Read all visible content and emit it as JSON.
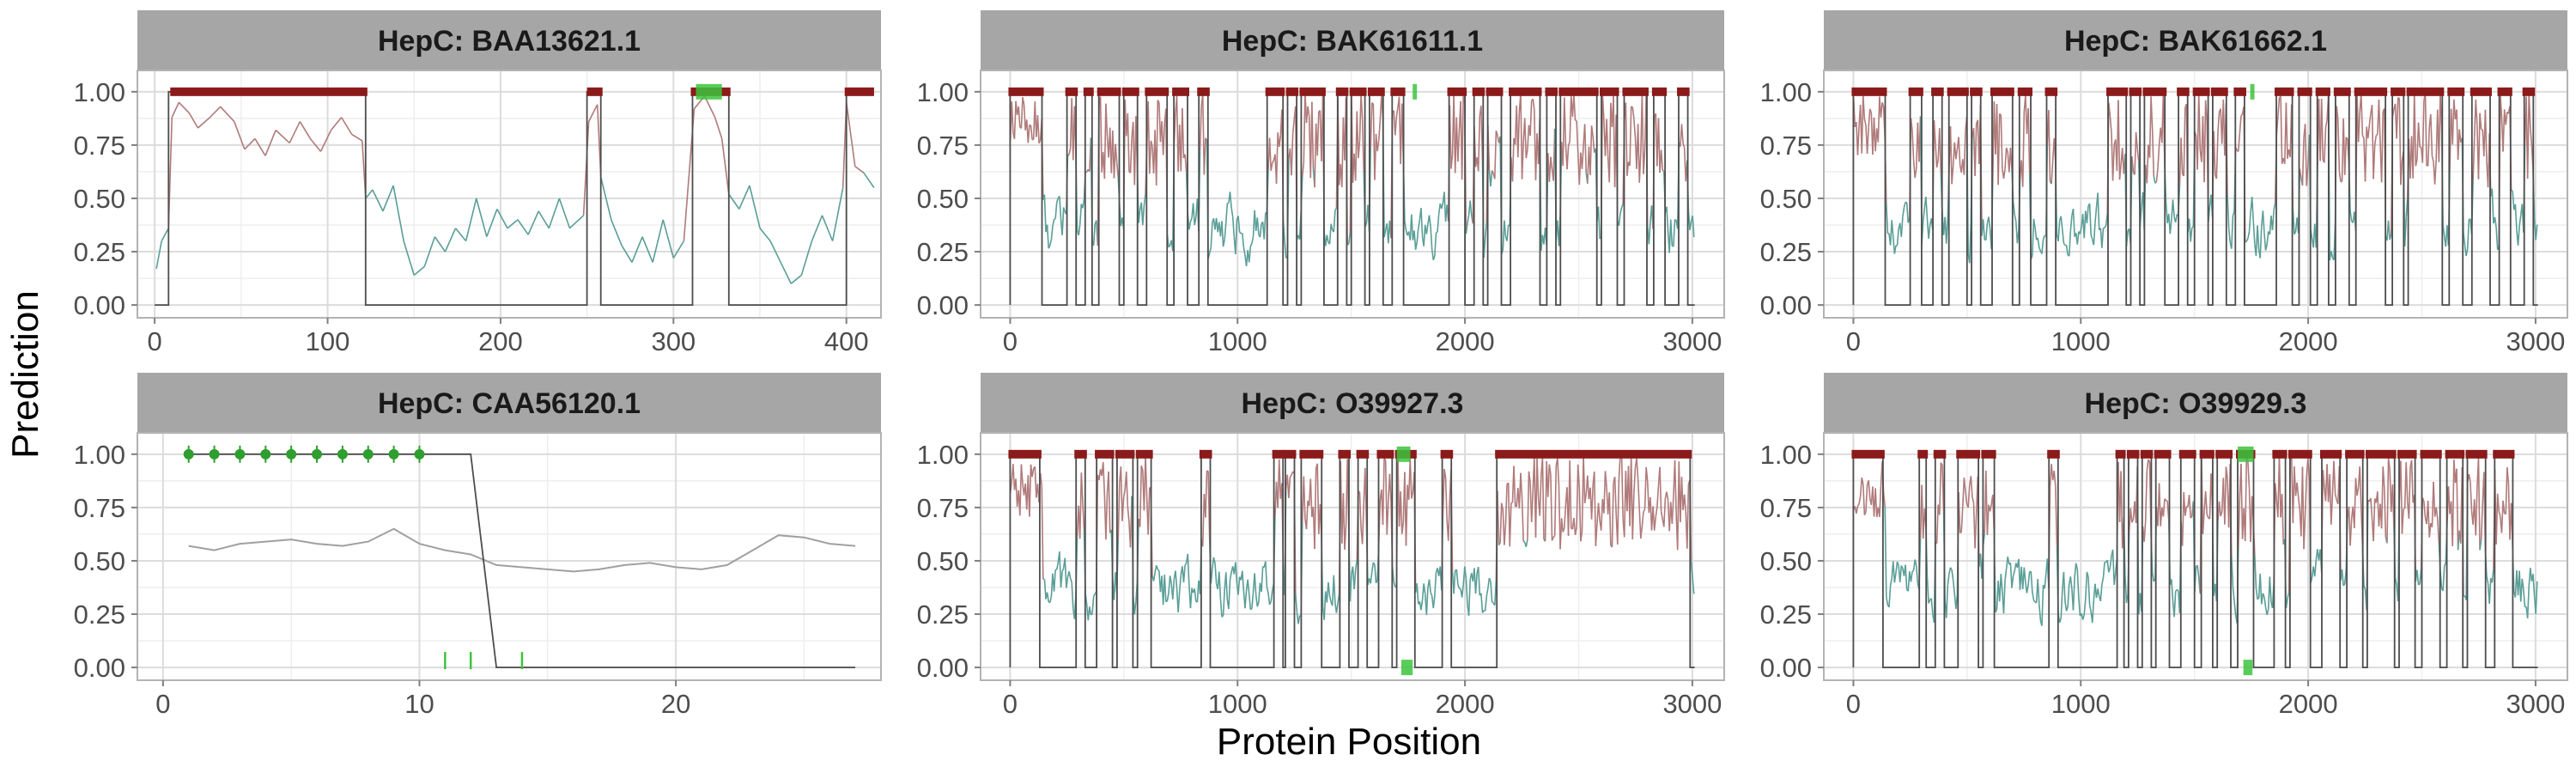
{
  "figure": {
    "xlabel": "Protein Position",
    "ylabel": "Prediction",
    "yticks": [
      0,
      0.25,
      0.5,
      0.75,
      1
    ],
    "ytick_labels": [
      "0.00",
      "0.25",
      "0.50",
      "0.75",
      "1.00"
    ]
  },
  "colors": {
    "strip": "#a6a6a6",
    "panel_border": "#b3b3b3",
    "grid_major": "#dcdcdc",
    "grid_minor": "#eeeeee",
    "step_line": "#4d4d4d",
    "high_score": "#b07a7a",
    "low_score": "#5a9e97",
    "neutral_score": "#a0a0a0",
    "predicted_epitope": "#8b1a1a",
    "known_epitope": "#3cc43c"
  },
  "chart_data": [
    {
      "type": "line",
      "title": "HepC: BAA13621.1",
      "xlim": [
        -10,
        420
      ],
      "ylim": [
        -0.06,
        1.1
      ],
      "xticks": [
        0,
        100,
        200,
        300,
        400
      ],
      "xtick_labels": [
        "0",
        "100",
        "200",
        "300",
        "400"
      ],
      "score_profile": [
        [
          1,
          0.17
        ],
        [
          4,
          0.3
        ],
        [
          8,
          0.36
        ],
        [
          10,
          0.88
        ],
        [
          14,
          0.95
        ],
        [
          20,
          0.9
        ],
        [
          25,
          0.83
        ],
        [
          32,
          0.88
        ],
        [
          38,
          0.93
        ],
        [
          46,
          0.86
        ],
        [
          52,
          0.73
        ],
        [
          58,
          0.78
        ],
        [
          64,
          0.7
        ],
        [
          70,
          0.82
        ],
        [
          78,
          0.76
        ],
        [
          84,
          0.86
        ],
        [
          90,
          0.78
        ],
        [
          96,
          0.72
        ],
        [
          102,
          0.82
        ],
        [
          108,
          0.88
        ],
        [
          114,
          0.8
        ],
        [
          120,
          0.77
        ],
        [
          122,
          0.5
        ],
        [
          126,
          0.54
        ],
        [
          132,
          0.44
        ],
        [
          138,
          0.56
        ],
        [
          144,
          0.3
        ],
        [
          150,
          0.14
        ],
        [
          156,
          0.18
        ],
        [
          162,
          0.32
        ],
        [
          168,
          0.25
        ],
        [
          174,
          0.36
        ],
        [
          180,
          0.3
        ],
        [
          186,
          0.5
        ],
        [
          192,
          0.32
        ],
        [
          198,
          0.45
        ],
        [
          204,
          0.36
        ],
        [
          210,
          0.4
        ],
        [
          216,
          0.33
        ],
        [
          222,
          0.44
        ],
        [
          228,
          0.36
        ],
        [
          234,
          0.5
        ],
        [
          240,
          0.36
        ],
        [
          248,
          0.42
        ],
        [
          251,
          0.86
        ],
        [
          256,
          0.94
        ],
        [
          258,
          0.6
        ],
        [
          264,
          0.4
        ],
        [
          270,
          0.28
        ],
        [
          276,
          0.2
        ],
        [
          282,
          0.32
        ],
        [
          288,
          0.2
        ],
        [
          294,
          0.4
        ],
        [
          300,
          0.22
        ],
        [
          306,
          0.3
        ],
        [
          312,
          0.92
        ],
        [
          318,
          0.98
        ],
        [
          324,
          0.88
        ],
        [
          328,
          0.78
        ],
        [
          332,
          0.52
        ],
        [
          338,
          0.45
        ],
        [
          344,
          0.56
        ],
        [
          350,
          0.36
        ],
        [
          356,
          0.3
        ],
        [
          362,
          0.2
        ],
        [
          368,
          0.1
        ],
        [
          374,
          0.14
        ],
        [
          380,
          0.3
        ],
        [
          386,
          0.42
        ],
        [
          392,
          0.3
        ],
        [
          398,
          0.55
        ],
        [
          400,
          0.95
        ],
        [
          405,
          0.65
        ],
        [
          410,
          0.62
        ],
        [
          416,
          0.55
        ]
      ],
      "binary_prediction": [
        [
          0,
          0
        ],
        [
          8,
          0
        ],
        [
          8,
          1
        ],
        [
          122,
          1
        ],
        [
          122,
          0
        ],
        [
          250,
          0
        ],
        [
          250,
          1
        ],
        [
          258,
          1
        ],
        [
          258,
          0
        ],
        [
          311,
          0
        ],
        [
          311,
          1
        ],
        [
          332,
          1
        ],
        [
          332,
          0
        ],
        [
          400,
          0
        ],
        [
          400,
          1
        ],
        [
          415,
          1
        ]
      ],
      "predicted_epitopes": [
        [
          10,
          122
        ],
        [
          251,
          258
        ],
        [
          311,
          332
        ],
        [
          400,
          415
        ]
      ],
      "known_epitopes": [
        [
          313,
          328
        ]
      ]
    },
    {
      "type": "line",
      "title": "HepC: BAK61611.1",
      "xlim": [
        -130,
        3140
      ],
      "ylim": [
        -0.06,
        1.1
      ],
      "xticks": [
        0,
        1000,
        2000,
        3000
      ],
      "xtick_labels": [
        "0",
        "1000",
        "2000",
        "3000"
      ],
      "predicted_epitopes": [
        [
          0,
          140
        ],
        [
          250,
          290
        ],
        [
          330,
          360
        ],
        [
          390,
          480
        ],
        [
          500,
          560
        ],
        [
          600,
          690
        ],
        [
          720,
          780
        ],
        [
          830,
          870
        ],
        [
          1130,
          1200
        ],
        [
          1220,
          1260
        ],
        [
          1280,
          1380
        ],
        [
          1440,
          1480
        ],
        [
          1500,
          1560
        ],
        [
          1580,
          1640
        ],
        [
          1680,
          1730
        ],
        [
          1930,
          2000
        ],
        [
          2040,
          2080
        ],
        [
          2100,
          2160
        ],
        [
          2200,
          2330
        ],
        [
          2360,
          2400
        ],
        [
          2420,
          2580
        ],
        [
          2600,
          2670
        ],
        [
          2700,
          2800
        ],
        [
          2830,
          2880
        ],
        [
          2940,
          2980
        ]
      ],
      "known_epitopes": [
        [
          1770,
          1780
        ]
      ]
    },
    {
      "type": "line",
      "title": "HepC: BAK61662.1",
      "xlim": [
        -130,
        3140
      ],
      "ylim": [
        -0.06,
        1.1
      ],
      "xticks": [
        0,
        1000,
        2000,
        3000
      ],
      "xtick_labels": [
        "0",
        "1000",
        "2000",
        "3000"
      ],
      "predicted_epitopes": [
        [
          0,
          140
        ],
        [
          250,
          300
        ],
        [
          350,
          390
        ],
        [
          420,
          500
        ],
        [
          520,
          560
        ],
        [
          610,
          700
        ],
        [
          730,
          780
        ],
        [
          850,
          890
        ],
        [
          1120,
          1200
        ],
        [
          1220,
          1260
        ],
        [
          1280,
          1370
        ],
        [
          1430,
          1470
        ],
        [
          1500,
          1560
        ],
        [
          1580,
          1640
        ],
        [
          1680,
          1720
        ],
        [
          1860,
          1930
        ],
        [
          1960,
          2010
        ],
        [
          2040,
          2090
        ],
        [
          2120,
          2180
        ],
        [
          2210,
          2340
        ],
        [
          2370,
          2420
        ],
        [
          2440,
          2590
        ],
        [
          2620,
          2680
        ],
        [
          2720,
          2800
        ],
        [
          2840,
          2890
        ],
        [
          2950,
          2990
        ]
      ],
      "known_epitopes": [
        [
          1745,
          1755
        ]
      ]
    },
    {
      "type": "line",
      "title": "HepC: CAA56120.1",
      "xlim": [
        -1,
        28
      ],
      "ylim": [
        -0.06,
        1.1
      ],
      "xticks": [
        0,
        10,
        20
      ],
      "xtick_labels": [
        "0",
        "10",
        "20"
      ],
      "score_profile": [
        [
          1,
          0.57
        ],
        [
          2,
          0.55
        ],
        [
          3,
          0.58
        ],
        [
          4,
          0.59
        ],
        [
          5,
          0.6
        ],
        [
          6,
          0.58
        ],
        [
          7,
          0.57
        ],
        [
          8,
          0.59
        ],
        [
          9,
          0.65
        ],
        [
          10,
          0.58
        ],
        [
          11,
          0.55
        ],
        [
          12,
          0.53
        ],
        [
          13,
          0.48
        ],
        [
          14,
          0.47
        ],
        [
          15,
          0.46
        ],
        [
          16,
          0.45
        ],
        [
          17,
          0.46
        ],
        [
          18,
          0.48
        ],
        [
          19,
          0.49
        ],
        [
          20,
          0.47
        ],
        [
          21,
          0.46
        ],
        [
          22,
          0.48
        ],
        [
          23,
          0.55
        ],
        [
          24,
          0.62
        ],
        [
          25,
          0.61
        ],
        [
          26,
          0.58
        ],
        [
          27,
          0.57
        ]
      ],
      "binary_prediction": [
        [
          1,
          1
        ],
        [
          12,
          1
        ],
        [
          13,
          0
        ],
        [
          27,
          0
        ]
      ],
      "known_epitope_positions": [
        1,
        2,
        3,
        4,
        5,
        6,
        7,
        8,
        9,
        10
      ],
      "known_epitope_ticks": [
        11,
        12,
        14
      ]
    },
    {
      "type": "line",
      "title": "HepC: O39927.3",
      "xlim": [
        -130,
        3140
      ],
      "ylim": [
        -0.06,
        1.1
      ],
      "xticks": [
        0,
        1000,
        2000,
        3000
      ],
      "xtick_labels": [
        "0",
        "1000",
        "2000",
        "3000"
      ],
      "predicted_epitopes": [
        [
          0,
          130
        ],
        [
          290,
          330
        ],
        [
          380,
          450
        ],
        [
          470,
          540
        ],
        [
          560,
          620
        ],
        [
          840,
          880
        ],
        [
          1160,
          1200
        ],
        [
          1210,
          1250
        ],
        [
          1280,
          1370
        ],
        [
          1450,
          1490
        ],
        [
          1530,
          1570
        ],
        [
          1620,
          1680
        ],
        [
          1700,
          1780
        ],
        [
          1900,
          1940
        ],
        [
          2140,
          2990
        ]
      ],
      "known_epitopes": [
        [
          1700,
          1760
        ]
      ],
      "known_epitopes_low": [
        [
          1720,
          1770
        ]
      ]
    },
    {
      "type": "line",
      "title": "HepC: O39929.3",
      "xlim": [
        -130,
        3140
      ],
      "ylim": [
        -0.06,
        1.1
      ],
      "xticks": [
        0,
        1000,
        2000,
        3000
      ],
      "xtick_labels": [
        "0",
        "1000",
        "2000",
        "3000"
      ],
      "predicted_epitopes": [
        [
          0,
          130
        ],
        [
          290,
          320
        ],
        [
          360,
          400
        ],
        [
          460,
          550
        ],
        [
          570,
          620
        ],
        [
          860,
          900
        ],
        [
          1160,
          1190
        ],
        [
          1210,
          1250
        ],
        [
          1270,
          1310
        ],
        [
          1330,
          1390
        ],
        [
          1440,
          1500
        ],
        [
          1530,
          1580
        ],
        [
          1600,
          1660
        ],
        [
          1690,
          1760
        ],
        [
          1850,
          1900
        ],
        [
          1920,
          2010
        ],
        [
          2060,
          2140
        ],
        [
          2170,
          2240
        ],
        [
          2260,
          2380
        ],
        [
          2400,
          2470
        ],
        [
          2500,
          2580
        ],
        [
          2610,
          2680
        ],
        [
          2700,
          2780
        ],
        [
          2820,
          2900
        ]
      ],
      "known_epitopes": [
        [
          1690,
          1760
        ]
      ],
      "known_epitopes_low": [
        [
          1715,
          1755
        ]
      ]
    }
  ]
}
